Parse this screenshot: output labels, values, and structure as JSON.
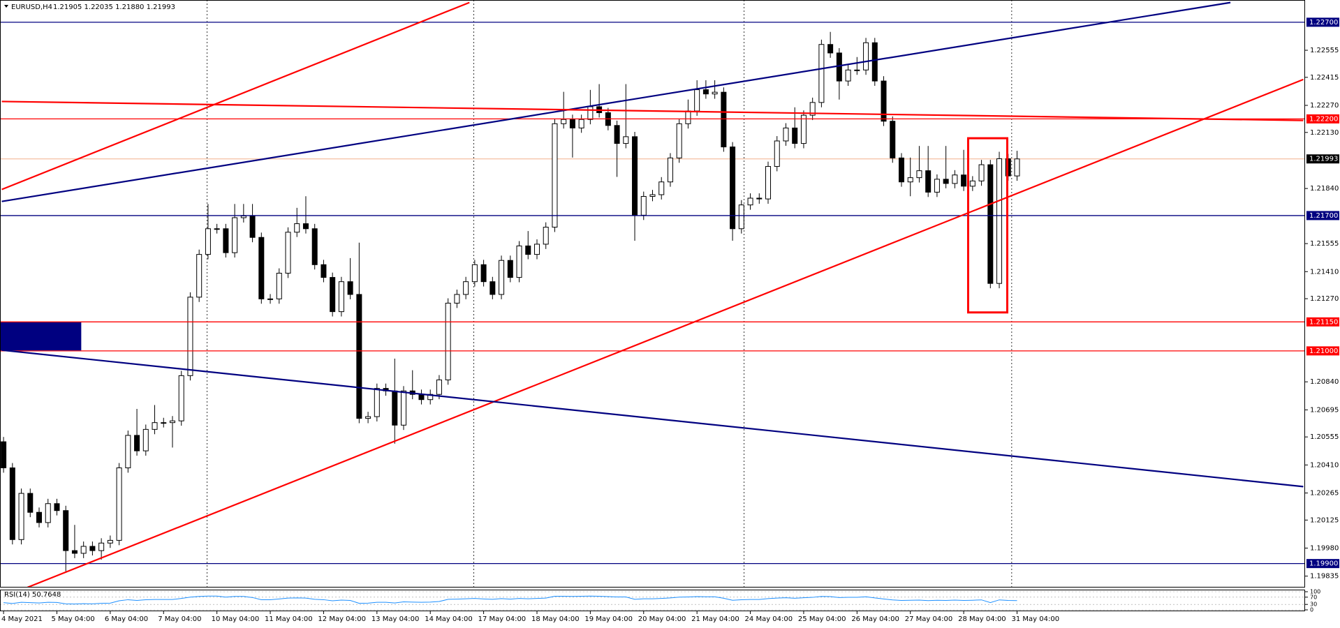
{
  "chart_data": [
    {
      "type": "candlestick",
      "title": "EURUSD,H4",
      "ohlc_label": "1.21905 1.22035 1.21880 1.21993",
      "up_color": "#ffffff",
      "down_color": "#000000",
      "xlim": [
        -0.4,
        146.4
      ],
      "ylim": [
        1.19776,
        1.22815
      ],
      "open": [
        1.2053,
        1.20395,
        1.20024,
        1.20263,
        1.20165,
        1.20112,
        1.2021,
        1.20174,
        1.19967,
        1.19953,
        1.19989,
        1.19967,
        1.20006,
        1.2002,
        1.20395,
        1.20563,
        1.20483,
        1.20594,
        1.20629,
        1.20629,
        1.20638,
        1.20872,
        1.21278,
        1.21499,
        1.21632,
        1.21632,
        1.21508,
        1.21689,
        1.21698,
        1.21587,
        1.21269,
        1.21269,
        1.21402,
        1.21614,
        1.21658,
        1.21632,
        1.21446,
        1.2138,
        1.21203,
        1.21358,
        1.21292,
        1.20651,
        1.2066,
        1.20806,
        1.20793,
        1.20616,
        1.20793,
        1.20775,
        1.20748,
        1.20775,
        1.2085,
        1.21247,
        1.21292,
        1.21358,
        1.21446,
        1.21358,
        1.21292,
        1.21468,
        1.2138,
        1.21543,
        1.21499,
        1.21552,
        1.2164,
        1.22175,
        1.22197,
        1.22153,
        1.22197,
        1.22263,
        1.22232,
        1.22166,
        1.22073,
        1.22108,
        1.21702,
        1.21799,
        1.21808,
        1.21874,
        1.21998,
        1.22175,
        1.22241,
        1.22351,
        1.22329,
        1.22338,
        1.22055,
        1.21632,
        1.21755,
        1.2179,
        1.21786,
        1.21954,
        1.22086,
        1.22153,
        1.22073,
        1.22219,
        1.22285,
        1.22585,
        1.22541,
        1.22396,
        1.22453,
        1.22453,
        1.22594,
        1.22396,
        1.22188,
        1.21998,
        1.21874,
        1.21896,
        1.21932,
        1.21821,
        1.21888,
        1.21866,
        1.2191,
        1.21852,
        1.21879,
        1.21963,
        1.21349,
        1.21994,
        1.21905
      ],
      "high": [
        1.20555,
        1.2042,
        1.20288,
        1.20288,
        1.2019,
        1.20235,
        1.20235,
        1.20199,
        1.201,
        1.20014,
        1.20014,
        1.20031,
        1.20045,
        1.2042,
        1.20588,
        1.207,
        1.20619,
        1.2072,
        1.20654,
        1.20663,
        1.20897,
        1.21303,
        1.21524,
        1.2176,
        1.21657,
        1.21657,
        1.2176,
        1.2176,
        1.2176,
        1.21612,
        1.21294,
        1.21427,
        1.21639,
        1.2174,
        1.218,
        1.21657,
        1.21471,
        1.21405,
        1.21383,
        1.2148,
        1.2156,
        1.20685,
        1.20831,
        1.20831,
        1.2096,
        1.20818,
        1.209,
        1.208,
        1.208,
        1.20875,
        1.21272,
        1.21317,
        1.21383,
        1.21471,
        1.21471,
        1.21383,
        1.21493,
        1.21493,
        1.21568,
        1.2162,
        1.21577,
        1.21665,
        1.222,
        1.2234,
        1.22222,
        1.22222,
        1.2235,
        1.2238,
        1.22257,
        1.22191,
        1.2238,
        1.22133,
        1.21824,
        1.21833,
        1.21899,
        1.22023,
        1.222,
        1.223,
        1.224,
        1.224,
        1.224,
        1.22363,
        1.2208,
        1.2178,
        1.21815,
        1.21815,
        1.21979,
        1.22111,
        1.22178,
        1.2226,
        1.22244,
        1.2231,
        1.2261,
        1.2265,
        1.22566,
        1.22478,
        1.2252,
        1.22619,
        1.22619,
        1.22421,
        1.22213,
        1.22023,
        1.22,
        1.2206,
        1.2206,
        1.21913,
        1.2206,
        1.21935,
        1.2204,
        1.21904,
        1.21988,
        1.21988,
        1.2203,
        1.22019,
        1.22035
      ],
      "low": [
        1.2037,
        1.19999,
        1.19999,
        1.2014,
        1.20087,
        1.20087,
        1.20149,
        1.1986,
        1.19928,
        1.19928,
        1.19942,
        1.1992,
        1.19981,
        1.19995,
        1.2037,
        1.20458,
        1.20458,
        1.20569,
        1.20604,
        1.205,
        1.20613,
        1.20847,
        1.21253,
        1.21474,
        1.21607,
        1.21483,
        1.21483,
        1.21664,
        1.21562,
        1.21244,
        1.21244,
        1.21244,
        1.21377,
        1.21589,
        1.21607,
        1.21421,
        1.21355,
        1.21178,
        1.21178,
        1.21267,
        1.20626,
        1.20626,
        1.20635,
        1.20768,
        1.2052,
        1.20591,
        1.2075,
        1.20723,
        1.20723,
        1.2075,
        1.20825,
        1.21222,
        1.21267,
        1.21333,
        1.21333,
        1.21267,
        1.21267,
        1.21355,
        1.21355,
        1.21474,
        1.21474,
        1.21527,
        1.21615,
        1.2215,
        1.22,
        1.22128,
        1.22172,
        1.22207,
        1.22141,
        1.219,
        1.22048,
        1.2157,
        1.21677,
        1.21774,
        1.21783,
        1.21849,
        1.21973,
        1.2215,
        1.22216,
        1.22304,
        1.22304,
        1.2203,
        1.2157,
        1.21607,
        1.2173,
        1.21761,
        1.21761,
        1.21929,
        1.22061,
        1.22048,
        1.22048,
        1.22194,
        1.2226,
        1.22516,
        1.223,
        1.22371,
        1.22428,
        1.22428,
        1.22371,
        1.22163,
        1.21973,
        1.21849,
        1.218,
        1.21871,
        1.21796,
        1.21796,
        1.21841,
        1.21841,
        1.21827,
        1.21827,
        1.21854,
        1.21324,
        1.21324,
        1.2188,
        1.2188
      ],
      "close": [
        1.20395,
        1.20024,
        1.20263,
        1.20165,
        1.20112,
        1.2021,
        1.20174,
        1.19967,
        1.19953,
        1.19989,
        1.19967,
        1.20006,
        1.2002,
        1.20395,
        1.20563,
        1.20483,
        1.20594,
        1.20629,
        1.20629,
        1.20638,
        1.20872,
        1.21278,
        1.21499,
        1.21632,
        1.21632,
        1.21508,
        1.21689,
        1.21698,
        1.21587,
        1.21269,
        1.21269,
        1.21402,
        1.21614,
        1.21658,
        1.21632,
        1.21446,
        1.2138,
        1.21203,
        1.21358,
        1.21292,
        1.20651,
        1.2066,
        1.20806,
        1.20793,
        1.20616,
        1.20793,
        1.20775,
        1.20748,
        1.20775,
        1.2085,
        1.21247,
        1.21292,
        1.21358,
        1.21446,
        1.21358,
        1.21292,
        1.21468,
        1.2138,
        1.21543,
        1.21499,
        1.21552,
        1.2164,
        1.22175,
        1.22197,
        1.22153,
        1.22197,
        1.22263,
        1.22232,
        1.22166,
        1.22073,
        1.22108,
        1.21702,
        1.21799,
        1.21808,
        1.21874,
        1.21998,
        1.22175,
        1.22241,
        1.22351,
        1.22329,
        1.22338,
        1.22055,
        1.21632,
        1.21755,
        1.2179,
        1.21786,
        1.21954,
        1.22086,
        1.22153,
        1.22073,
        1.22219,
        1.22285,
        1.22585,
        1.22541,
        1.22396,
        1.22453,
        1.22453,
        1.22594,
        1.22396,
        1.22188,
        1.21998,
        1.21874,
        1.21896,
        1.21932,
        1.21821,
        1.21888,
        1.21866,
        1.2191,
        1.21852,
        1.21879,
        1.21963,
        1.21349,
        1.21994,
        1.21905,
        1.21993
      ],
      "yticks": [
        {
          "value": 1.22555,
          "label": "1.22555"
        },
        {
          "value": 1.22415,
          "label": "1.22415"
        },
        {
          "value": 1.2227,
          "label": "1.22270"
        },
        {
          "value": 1.2213,
          "label": "1.22130"
        },
        {
          "value": 1.2184,
          "label": "1.21840"
        },
        {
          "value": 1.21555,
          "label": "1.21555"
        },
        {
          "value": 1.2141,
          "label": "1.21410"
        },
        {
          "value": 1.2127,
          "label": "1.21270"
        },
        {
          "value": 1.2084,
          "label": "1.20840"
        },
        {
          "value": 1.20695,
          "label": "1.20695"
        },
        {
          "value": 1.20555,
          "label": "1.20555"
        },
        {
          "value": 1.2041,
          "label": "1.20410"
        },
        {
          "value": 1.20265,
          "label": "1.20265"
        },
        {
          "value": 1.20125,
          "label": "1.20125"
        },
        {
          "value": 1.1998,
          "label": "1.19980"
        },
        {
          "value": 1.19835,
          "label": "1.19835"
        }
      ],
      "xticks": [
        {
          "value": 0,
          "label": "4 May 2021"
        },
        {
          "value": 6,
          "label": "5 May 04:00"
        },
        {
          "value": 12,
          "label": "6 May 04:00"
        },
        {
          "value": 18,
          "label": "7 May 04:00"
        },
        {
          "value": 24,
          "label": "10 May 04:00"
        },
        {
          "value": 30,
          "label": "11 May 04:00"
        },
        {
          "value": 36,
          "label": "12 May 04:00"
        },
        {
          "value": 42,
          "label": "13 May 04:00"
        },
        {
          "value": 48,
          "label": "14 May 04:00"
        },
        {
          "value": 54,
          "label": "17 May 04:00"
        },
        {
          "value": 60,
          "label": "18 May 04:00"
        },
        {
          "value": 66,
          "label": "19 May 04:00"
        },
        {
          "value": 72,
          "label": "20 May 04:00"
        },
        {
          "value": 78,
          "label": "21 May 04:00"
        },
        {
          "value": 84,
          "label": "24 May 04:00"
        },
        {
          "value": 90,
          "label": "25 May 04:00"
        },
        {
          "value": 96,
          "label": "26 May 04:00"
        },
        {
          "value": 102,
          "label": "27 May 04:00"
        },
        {
          "value": 108,
          "label": "28 May 04:00"
        },
        {
          "value": 114,
          "label": "31 May 04:00"
        }
      ],
      "separators": [
        22.9,
        52.9,
        83.3,
        113.4
      ],
      "levels": [
        {
          "value": 1.227,
          "label": "1.22700",
          "color": "#000080"
        },
        {
          "value": 1.222,
          "label": "1.22200",
          "color": "#ff0000"
        },
        {
          "value": 1.217,
          "label": "1.21700",
          "color": "#000080"
        },
        {
          "value": 1.2115,
          "label": "1.21150",
          "color": "#ff0000"
        },
        {
          "value": 1.21,
          "label": "1.21000",
          "color": "#ff0000"
        },
        {
          "value": 1.199,
          "label": "1.19900",
          "color": "#000080"
        }
      ],
      "bid": {
        "value": 1.21993,
        "label": "1.21993",
        "color": "#f4b08c"
      },
      "trendlines": [
        {
          "color": "#ff0000",
          "x": [
            -0.2,
            52.4
          ],
          "y": [
            1.21835,
            1.22802
          ]
        },
        {
          "color": "#000080",
          "x": [
            -0.2,
            138
          ],
          "y": [
            1.21773,
            1.22802
          ]
        },
        {
          "color": "#ff0000",
          "x": [
            -0.2,
            146.2
          ],
          "y": [
            1.2229,
            1.22192
          ]
        },
        {
          "color": "#ff0000",
          "x": [
            2.7,
            146.2
          ],
          "y": [
            1.19777,
            1.22404
          ]
        },
        {
          "color": "#000080",
          "x": [
            -0.2,
            146.2
          ],
          "y": [
            1.21004,
            1.20298
          ]
        }
      ],
      "rectangles": [
        {
          "color": "#000080",
          "filled": true,
          "x": [
            -0.4,
            8.7
          ],
          "y": [
            1.21146,
            1.21004
          ]
        },
        {
          "color": "#ff0000",
          "filled": false,
          "x": [
            108.5,
            112.9
          ],
          "y": [
            1.221,
            1.21199
          ]
        }
      ]
    },
    {
      "type": "line",
      "title": "RSI(14) 50.7648",
      "color": "#1e90ff",
      "xlim": [
        -0.4,
        146.4
      ],
      "ylim": [
        0,
        100
      ],
      "yticks": [
        100,
        70,
        30,
        0
      ],
      "values": [
        40,
        35,
        42,
        40,
        38,
        42,
        41,
        33,
        32,
        34,
        33,
        36,
        37,
        50,
        56,
        52,
        56,
        57,
        57,
        57,
        63,
        70,
        74,
        76,
        76,
        70,
        74,
        74,
        68,
        56,
        56,
        60,
        65,
        66,
        65,
        58,
        56,
        50,
        54,
        52,
        36,
        37,
        42,
        42,
        38,
        44,
        43,
        42,
        43,
        46,
        58,
        59,
        61,
        63,
        60,
        58,
        62,
        59,
        63,
        61,
        63,
        65,
        75,
        75,
        74,
        75,
        76,
        75,
        73,
        71,
        71,
        58,
        61,
        61,
        63,
        66,
        70,
        71,
        73,
        72,
        72,
        64,
        53,
        56,
        57,
        57,
        62,
        65,
        67,
        64,
        67,
        69,
        74,
        73,
        68,
        69,
        69,
        72,
        66,
        60,
        55,
        52,
        53,
        54,
        51,
        53,
        52,
        54,
        52,
        53,
        55,
        40,
        55,
        52,
        50.7648
      ]
    }
  ]
}
